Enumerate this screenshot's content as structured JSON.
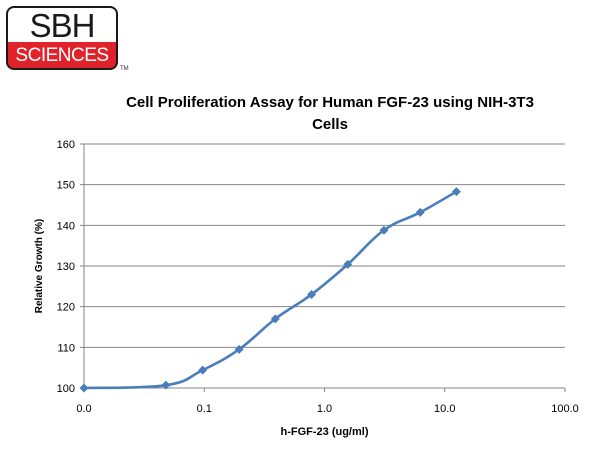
{
  "logo": {
    "line1": "SBH",
    "line2": "SCIENCES",
    "tm": "TM"
  },
  "chart_data": {
    "type": "line",
    "title": "Cell Proliferation Assay for Human FGF-23 using NIH-3T3 Cells",
    "title_lines": [
      "Cell Proliferation Assay for Human FGF-23 using NIH-3T3",
      "Cells"
    ],
    "xlabel": "h-FGF-23 (ug/ml)",
    "ylabel": "Relative Growth (%)",
    "xscale": "log",
    "xlim": [
      0.01,
      100
    ],
    "ylim": [
      100,
      160
    ],
    "x_tick_values": [
      0.01,
      0.1,
      1,
      10,
      100
    ],
    "x_tick_labels": [
      "0.0",
      "0.1",
      "1.0",
      "10.0",
      "100.0"
    ],
    "y_ticks": [
      100,
      110,
      120,
      130,
      140,
      150,
      160
    ],
    "grid": "horizontal",
    "line_color": "#4a7ebb",
    "series": [
      {
        "x": [
          0.01,
          0.048,
          0.097,
          0.195,
          0.39,
          0.78,
          1.56,
          3.12,
          6.25,
          12.5
        ],
        "y": [
          100.0,
          100.7,
          104.4,
          109.5,
          117.0,
          123.0,
          130.4,
          138.8,
          143.2,
          148.3
        ]
      }
    ]
  }
}
